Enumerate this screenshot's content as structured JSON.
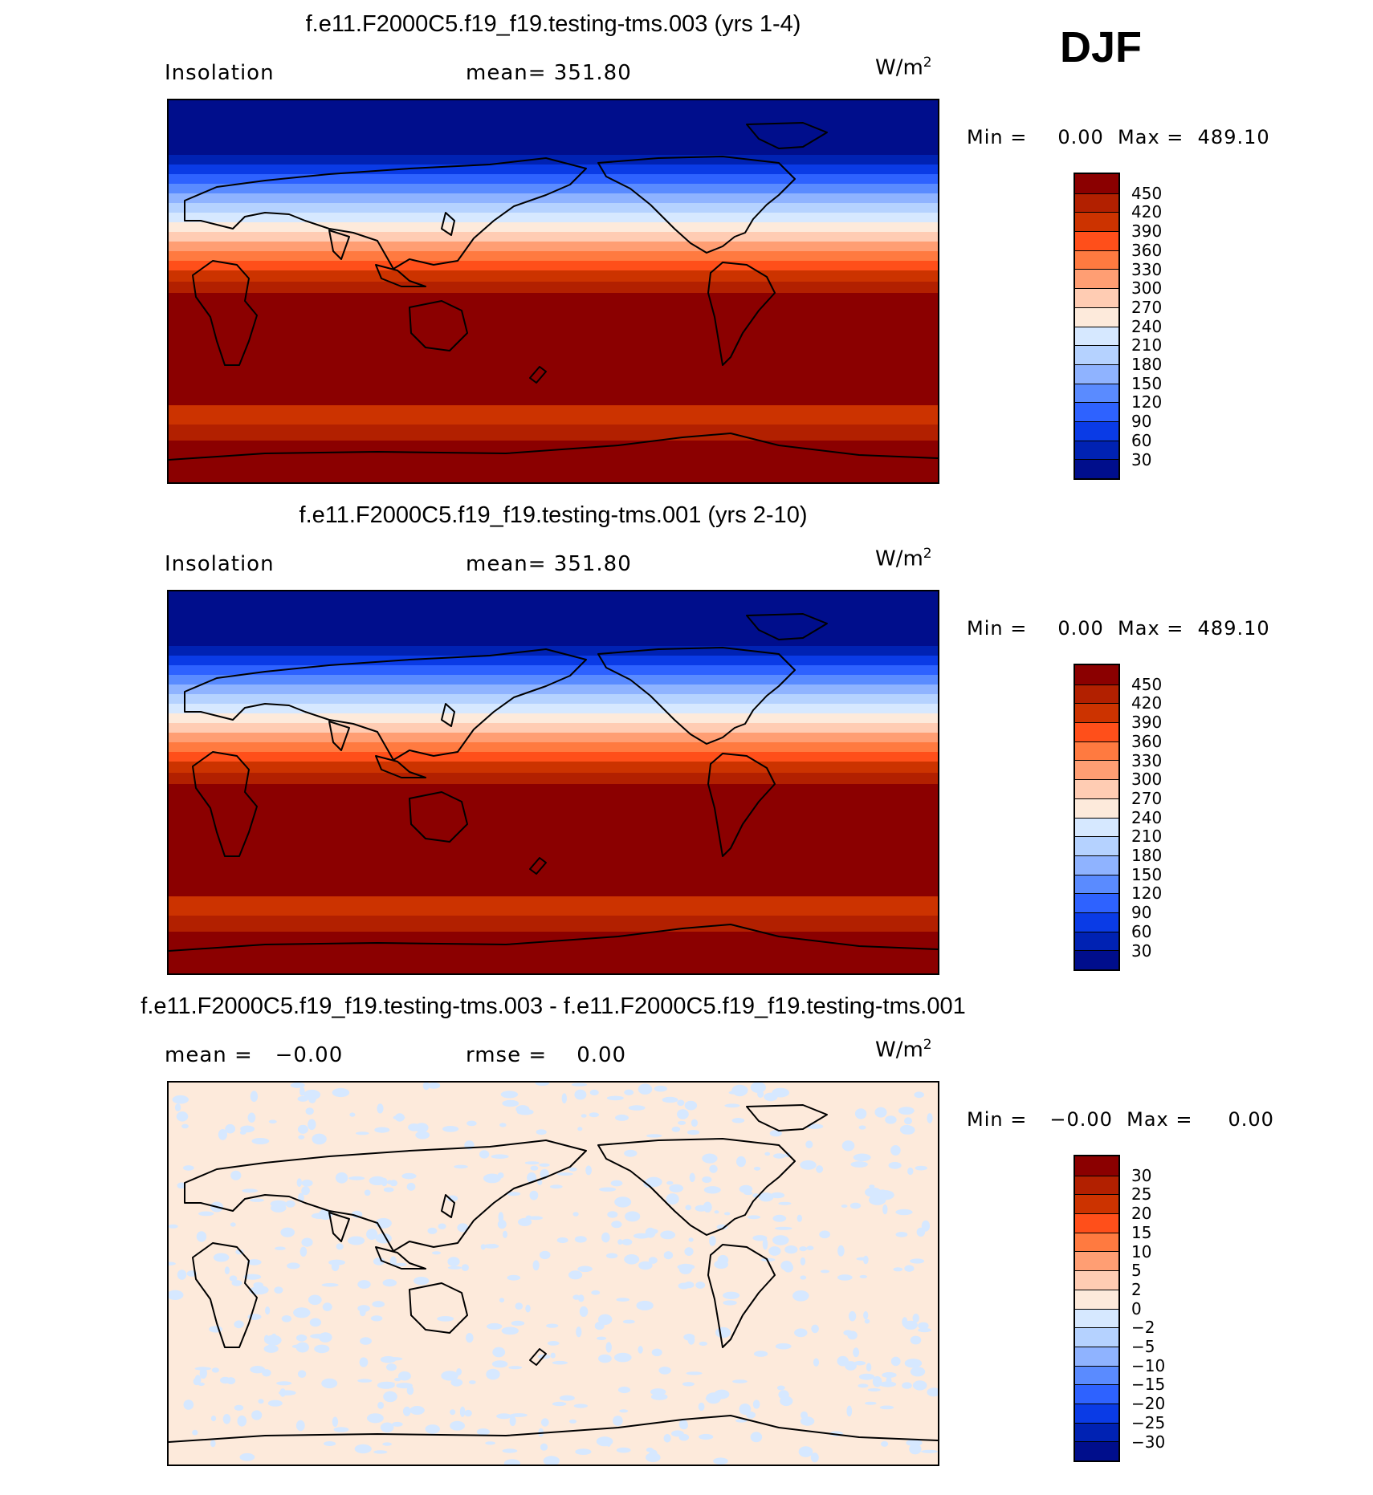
{
  "season": "DJF",
  "panels": [
    {
      "title": "f.e11.F2000C5.f19_f19.testing-tms.003 (yrs 1-4)",
      "left_label": "Insolation",
      "center_label": "mean= 351.80",
      "units": "W/m",
      "units_exp": "2",
      "min_label": "Min =",
      "min_value": "0.00",
      "max_label": "Max =",
      "max_value": "489.10",
      "colorbar": {
        "levels": [
          "450",
          "420",
          "390",
          "360",
          "330",
          "300",
          "270",
          "240",
          "210",
          "180",
          "150",
          "120",
          "90",
          "60",
          "30"
        ],
        "colors": [
          "#8b0000",
          "#b22000",
          "#cc3300",
          "#ff4f1a",
          "#ff7a40",
          "#ff9e73",
          "#ffccb3",
          "#fdeadb",
          "#d6e8ff",
          "#b5d2ff",
          "#8fb3ff",
          "#5a8bff",
          "#2e62ff",
          "#0a3be6",
          "#0022b3",
          "#000e8c"
        ]
      },
      "map": {
        "type": "insolation",
        "band_colors": [
          "#000e8c",
          "#0022b3",
          "#0a3be6",
          "#2e62ff",
          "#5a8bff",
          "#8fb3ff",
          "#b5d2ff",
          "#d6e8ff",
          "#fdeadb",
          "#ffccb3",
          "#ff9e73",
          "#ff7a40",
          "#ff4f1a",
          "#cc3300",
          "#b22000",
          "#8b0000"
        ]
      }
    },
    {
      "title": "f.e11.F2000C5.f19_f19.testing-tms.001 (yrs 2-10)",
      "left_label": "Insolation",
      "center_label": "mean= 351.80",
      "units": "W/m",
      "units_exp": "2",
      "min_label": "Min =",
      "min_value": "0.00",
      "max_label": "Max =",
      "max_value": "489.10",
      "colorbar": {
        "levels": [
          "450",
          "420",
          "390",
          "360",
          "330",
          "300",
          "270",
          "240",
          "210",
          "180",
          "150",
          "120",
          "90",
          "60",
          "30"
        ],
        "colors": [
          "#8b0000",
          "#b22000",
          "#cc3300",
          "#ff4f1a",
          "#ff7a40",
          "#ff9e73",
          "#ffccb3",
          "#fdeadb",
          "#d6e8ff",
          "#b5d2ff",
          "#8fb3ff",
          "#5a8bff",
          "#2e62ff",
          "#0a3be6",
          "#0022b3",
          "#000e8c"
        ]
      },
      "map": {
        "type": "insolation",
        "band_colors": [
          "#000e8c",
          "#0022b3",
          "#0a3be6",
          "#2e62ff",
          "#5a8bff",
          "#8fb3ff",
          "#b5d2ff",
          "#d6e8ff",
          "#fdeadb",
          "#ffccb3",
          "#ff9e73",
          "#ff7a40",
          "#ff4f1a",
          "#cc3300",
          "#b22000",
          "#8b0000"
        ]
      }
    },
    {
      "title": "f.e11.F2000C5.f19_f19.testing-tms.003 - f.e11.F2000C5.f19_f19.testing-tms.001",
      "left_label": "mean =   −0.00",
      "center_label": "rmse =    0.00",
      "units": "W/m",
      "units_exp": "2",
      "min_label": "Min =",
      "min_value": "−0.00",
      "max_label": "Max =",
      "max_value": "0.00",
      "colorbar": {
        "levels": [
          "30",
          "25",
          "20",
          "15",
          "10",
          "5",
          "2",
          "0",
          "−2",
          "−5",
          "−10",
          "−15",
          "−20",
          "−25",
          "−30"
        ],
        "colors": [
          "#8b0000",
          "#b22000",
          "#cc3300",
          "#ff4f1a",
          "#ff7a40",
          "#ff9e73",
          "#ffccb3",
          "#fdeadb",
          "#d6e8ff",
          "#b5d2ff",
          "#8fb3ff",
          "#5a8bff",
          "#2e62ff",
          "#0a3be6",
          "#0022b3",
          "#000e8c"
        ]
      },
      "map": {
        "type": "difference",
        "fill": "#fdeadb",
        "speckle": "#d6e8ff"
      }
    }
  ]
}
